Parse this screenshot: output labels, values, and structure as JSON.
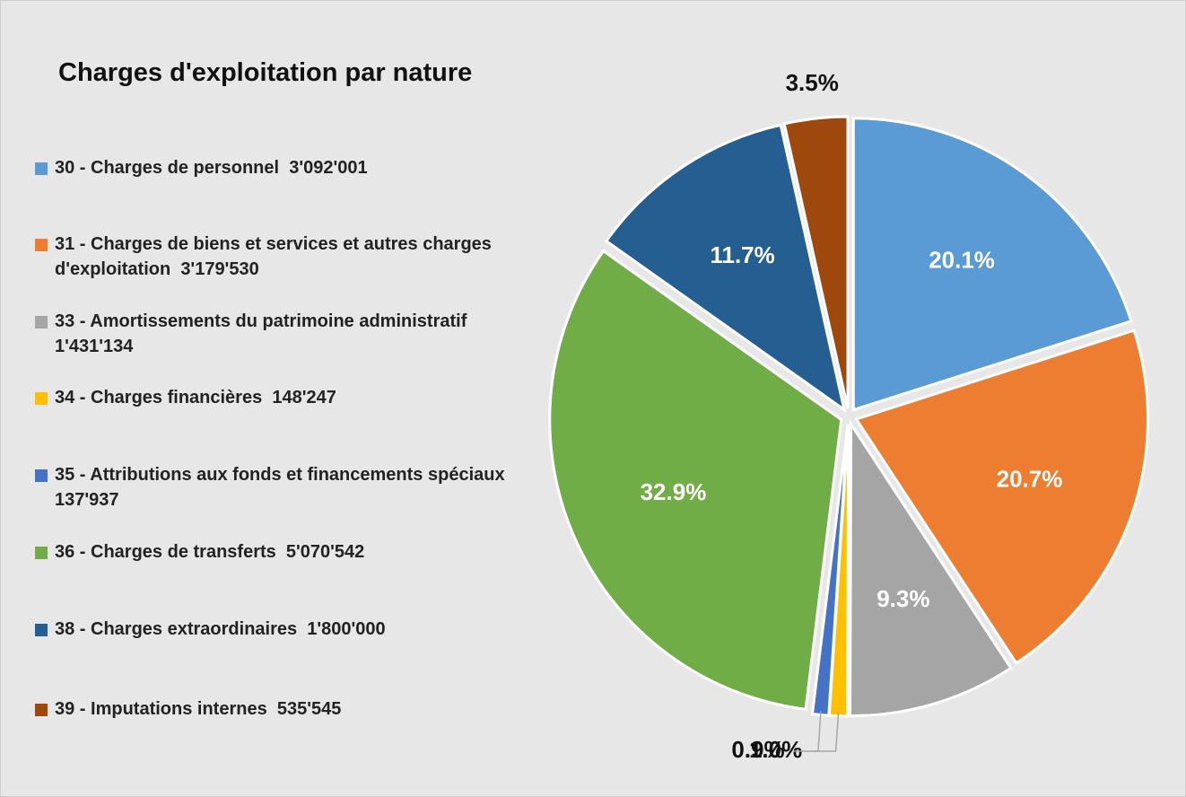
{
  "chart_data": {
    "type": "pie",
    "title": "Charges d'exploitation par nature",
    "categories": [
      "30 - Charges de personnel  3'092'001",
      "31 - Charges de biens et services et autres charges d'exploitation  3'179'530",
      "33 - Amortissements du patrimoine administratif  1'431'134",
      "34 - Charges financières  148'247",
      "35 - Attributions aux fonds et financements spéciaux  137'937",
      "36 - Charges de transferts  5'070'542",
      "38 - Charges extraordinaires  1'800'000",
      "39 - Imputations internes  535'545"
    ],
    "values": [
      20.1,
      20.7,
      9.3,
      1.0,
      0.9,
      32.9,
      11.7,
      3.5
    ],
    "value_labels": [
      "20.1%",
      "20.7%",
      "9.3%",
      "1.0%",
      "0.9%",
      "32.9%",
      "11.7%",
      "3.5%"
    ],
    "colors": [
      "#5b9bd5",
      "#ed7d31",
      "#a5a5a5",
      "#ffc000",
      "#4472c4",
      "#70ad47",
      "#255e91",
      "#9e480e"
    ],
    "legend": "left"
  }
}
